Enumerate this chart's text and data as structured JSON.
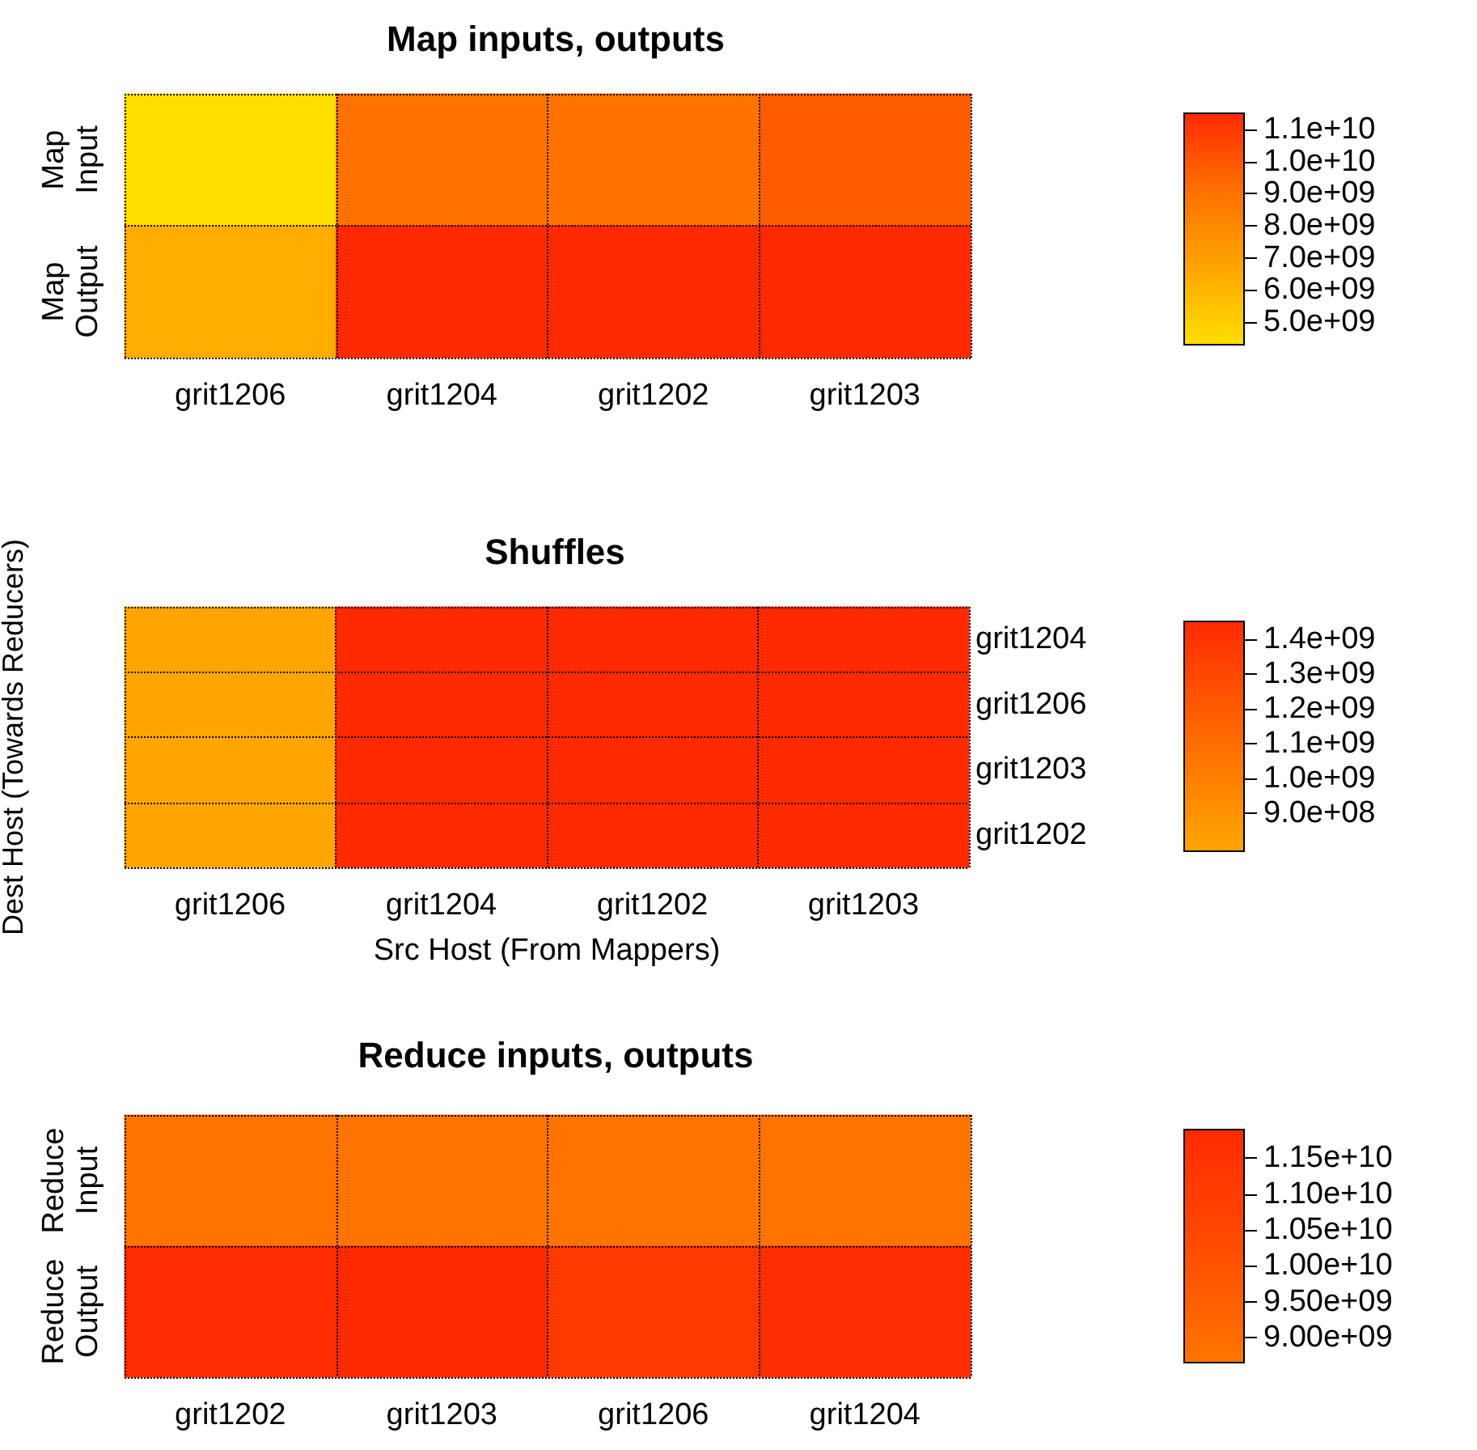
{
  "chart_data": [
    {
      "type": "heatmap",
      "title": "Map inputs, outputs",
      "categories": [
        "grit1206",
        "grit1204",
        "grit1202",
        "grit1203"
      ],
      "y_categories": [
        "Map\nInput",
        "Map\nOutput"
      ],
      "cells": [
        [
          4300000000,
          9000000000,
          9000000000,
          9800000000
        ],
        [
          6400000000,
          11500000000,
          11500000000,
          11500000000
        ]
      ],
      "clim": [
        4300000000,
        11500000000
      ],
      "grid": true,
      "cticks": [
        {
          "value": 5000000000,
          "label": "5.0e+09"
        },
        {
          "value": 6000000000,
          "label": "6.0e+09"
        },
        {
          "value": 7000000000,
          "label": "7.0e+09"
        },
        {
          "value": 8000000000,
          "label": "8.0e+09"
        },
        {
          "value": 9000000000,
          "label": "9.0e+09"
        },
        {
          "value": 10000000000,
          "label": "1.0e+10"
        },
        {
          "value": 11000000000,
          "label": "1.1e+10"
        }
      ]
    },
    {
      "type": "heatmap",
      "title": "Shuffles",
      "xlabel": "Src Host (From Mappers)",
      "ylabel": "Dest Host (Towards Reducers)",
      "categories": [
        "grit1206",
        "grit1204",
        "grit1202",
        "grit1203"
      ],
      "y_categories": [
        "grit1204",
        "grit1206",
        "grit1203",
        "grit1202"
      ],
      "cells": [
        [
          790000000,
          1450000000,
          1450000000,
          1450000000
        ],
        [
          790000000,
          1450000000,
          1450000000,
          1450000000
        ],
        [
          790000000,
          1450000000,
          1450000000,
          1450000000
        ],
        [
          790000000,
          1450000000,
          1450000000,
          1450000000
        ]
      ],
      "clim": [
        790000000,
        1450000000
      ],
      "grid": true,
      "cticks": [
        {
          "value": 900000000,
          "label": "9.0e+08"
        },
        {
          "value": 1000000000,
          "label": "1.0e+09"
        },
        {
          "value": 1100000000,
          "label": "1.1e+09"
        },
        {
          "value": 1200000000,
          "label": "1.2e+09"
        },
        {
          "value": 1300000000,
          "label": "1.3e+09"
        },
        {
          "value": 1400000000,
          "label": "1.4e+09"
        }
      ]
    },
    {
      "type": "heatmap",
      "title": "Reduce inputs, outputs",
      "categories": [
        "grit1202",
        "grit1203",
        "grit1206",
        "grit1204"
      ],
      "y_categories": [
        "Reduce\nInput",
        "Reduce\nOutput"
      ],
      "cells": [
        [
          8700000000,
          8700000000,
          8700000000,
          8700000000
        ],
        [
          11800000000,
          11900000000,
          11200000000,
          11700000000
        ]
      ],
      "clim": [
        8650000000,
        11900000000
      ],
      "grid": true,
      "cticks": [
        {
          "value": 9000000000,
          "label": "9.00e+09"
        },
        {
          "value": 9500000000,
          "label": "9.50e+09"
        },
        {
          "value": 10000000000,
          "label": "1.00e+10"
        },
        {
          "value": 10500000000,
          "label": "1.05e+10"
        },
        {
          "value": 11000000000,
          "label": "1.10e+10"
        },
        {
          "value": 11500000000,
          "label": "1.15e+10"
        }
      ]
    }
  ]
}
